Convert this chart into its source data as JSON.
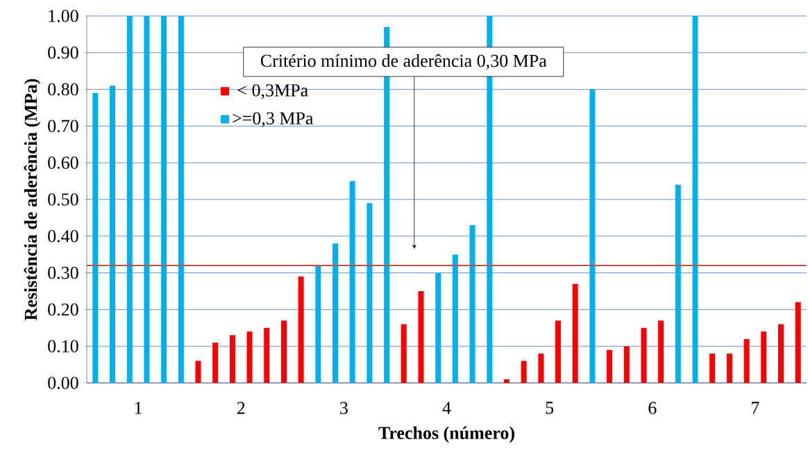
{
  "chart_data": {
    "type": "bar",
    "xlabel": "Trechos (número)",
    "ylabel": "Resistência de aderência (MPa)",
    "x": [
      0.583,
      0.75,
      0.917,
      1.083,
      1.25,
      1.417,
      1.583,
      1.75,
      1.917,
      2.083,
      2.25,
      2.417,
      2.583,
      2.75,
      2.917,
      3.083,
      3.25,
      3.417,
      3.583,
      3.75,
      3.917,
      4.083,
      4.25,
      4.417,
      4.583,
      4.75,
      4.917,
      5.083,
      5.25,
      5.417,
      5.583,
      5.75,
      5.917,
      6.083,
      6.25,
      6.417,
      6.583,
      6.75,
      6.917,
      7.083,
      7.25,
      7.417
    ],
    "series": [
      {
        "name": "< 0,3MPa",
        "color": "#ff0000",
        "values": [
          null,
          null,
          null,
          null,
          null,
          null,
          0.06,
          0.11,
          0.13,
          0.14,
          0.15,
          0.17,
          0.29,
          null,
          null,
          null,
          null,
          null,
          0.16,
          0.25,
          null,
          null,
          null,
          null,
          0.01,
          0.06,
          0.08,
          0.17,
          0.27,
          null,
          0.09,
          0.1,
          0.15,
          0.17,
          null,
          null,
          0.08,
          0.08,
          0.12,
          0.14,
          0.16,
          0.22
        ]
      },
      {
        "name": ">=0,3 MPa",
        "color": "#00b0f0",
        "values": [
          0.79,
          0.81,
          1.0,
          1.0,
          1.0,
          1.0,
          null,
          null,
          null,
          null,
          null,
          null,
          null,
          0.32,
          0.38,
          0.55,
          0.49,
          0.97,
          null,
          null,
          0.3,
          0.35,
          0.43,
          1.0,
          null,
          null,
          null,
          null,
          null,
          0.8,
          null,
          null,
          null,
          null,
          0.54,
          1.0,
          null,
          null,
          null,
          null,
          null,
          null
        ]
      }
    ],
    "xlim": [
      0.5,
      7.5
    ],
    "xticks": [
      1,
      2,
      3,
      4,
      5,
      6,
      7
    ],
    "ylim": [
      0,
      1
    ],
    "yticks": [
      {
        "value": 0,
        "label": "0.00"
      },
      {
        "value": 0.1,
        "label": "0.10"
      },
      {
        "value": 0.2,
        "label": "0.20"
      },
      {
        "value": 0.3,
        "label": "0.30"
      },
      {
        "value": 0.4,
        "label": "0.40"
      },
      {
        "value": 0.5,
        "label": "0.50"
      },
      {
        "value": 0.6,
        "label": "0.60"
      },
      {
        "value": 0.7,
        "label": "0.70"
      },
      {
        "value": 0.8,
        "label": "0.80"
      },
      {
        "value": 0.9,
        "label": "0.90"
      },
      {
        "value": 1.0,
        "label": "1.00"
      }
    ],
    "ref_lines": [
      {
        "axis": "y",
        "value": 0.32,
        "color": "#c0504d"
      }
    ],
    "annotations": [
      "Critério mínimo  de aderência 0,30 MPa"
    ],
    "grid": "y",
    "legend": "top left"
  }
}
